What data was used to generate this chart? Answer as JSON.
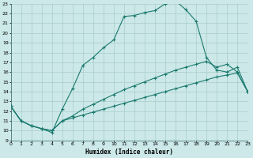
{
  "title": "",
  "xlabel": "Humidex (Indice chaleur)",
  "bg_color": "#cce8e8",
  "grid_color": "#aacccc",
  "line_color": "#1a7a6e",
  "xlim": [
    0,
    23
  ],
  "ylim": [
    9,
    23
  ],
  "xticks": [
    0,
    1,
    2,
    3,
    4,
    5,
    6,
    7,
    8,
    9,
    10,
    11,
    12,
    13,
    14,
    15,
    16,
    17,
    18,
    19,
    20,
    21,
    22,
    23
  ],
  "yticks": [
    9,
    10,
    11,
    12,
    13,
    14,
    15,
    16,
    17,
    18,
    19,
    20,
    21,
    22,
    23
  ],
  "line1_x": [
    0,
    1,
    2,
    3,
    4,
    5,
    6,
    7,
    8,
    9,
    10,
    11,
    12,
    13,
    14,
    15,
    16,
    17,
    18,
    19,
    20,
    21,
    22,
    23
  ],
  "line1_y": [
    12.5,
    11.0,
    10.5,
    10.2,
    9.8,
    12.2,
    14.3,
    16.7,
    17.5,
    18.5,
    19.3,
    21.7,
    21.8,
    22.1,
    22.3,
    23.0,
    23.3,
    22.4,
    21.2,
    17.5,
    16.2,
    16.0,
    16.5,
    14.0
  ],
  "line2_x": [
    0,
    1,
    2,
    3,
    4,
    5,
    6,
    7,
    8,
    9,
    10,
    11,
    12,
    13,
    14,
    15,
    16,
    17,
    18,
    19,
    20,
    21,
    22,
    23
  ],
  "line2_y": [
    12.5,
    11.0,
    10.5,
    10.2,
    10.0,
    11.0,
    11.5,
    12.2,
    12.7,
    13.2,
    13.7,
    14.2,
    14.6,
    15.0,
    15.4,
    15.8,
    16.2,
    16.5,
    16.8,
    17.1,
    16.5,
    16.8,
    16.0,
    14.0
  ],
  "line3_x": [
    0,
    1,
    2,
    3,
    4,
    5,
    6,
    7,
    8,
    9,
    10,
    11,
    12,
    13,
    14,
    15,
    16,
    17,
    18,
    19,
    20,
    21,
    22,
    23
  ],
  "line3_y": [
    12.5,
    11.0,
    10.5,
    10.2,
    10.0,
    11.0,
    11.3,
    11.6,
    11.9,
    12.2,
    12.5,
    12.8,
    13.1,
    13.4,
    13.7,
    14.0,
    14.3,
    14.6,
    14.9,
    15.2,
    15.5,
    15.7,
    15.9,
    14.0
  ]
}
